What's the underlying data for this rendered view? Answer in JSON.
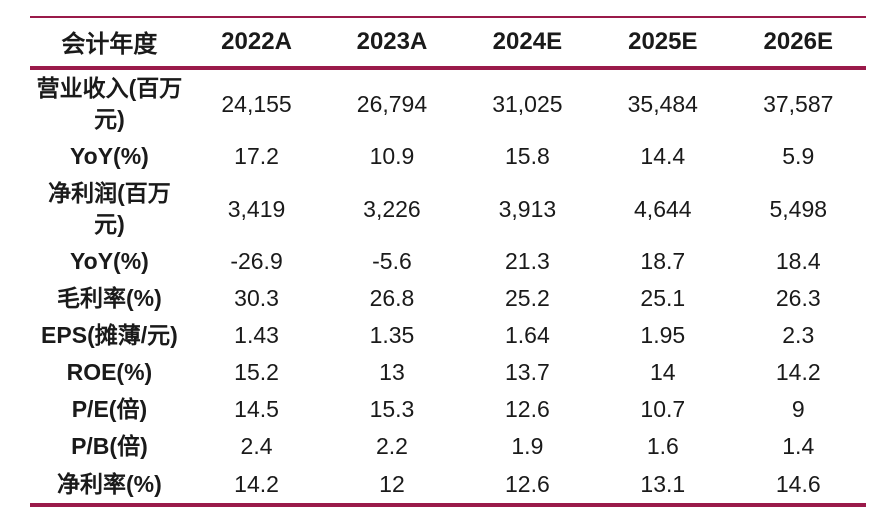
{
  "colors": {
    "accent": "#9A1A4A",
    "text": "#1A1A1A",
    "background": "#FFFFFF"
  },
  "table": {
    "columns": [
      "会计年度",
      "2022A",
      "2023A",
      "2024E",
      "2025E",
      "2026E"
    ],
    "rows": [
      {
        "label": "营业收入(百万元)",
        "values": [
          "24,155",
          "26,794",
          "31,025",
          "35,484",
          "37,587"
        ]
      },
      {
        "label": "YoY(%)",
        "values": [
          "17.2",
          "10.9",
          "15.8",
          "14.4",
          "5.9"
        ]
      },
      {
        "label": "净利润(百万元)",
        "values": [
          "3,419",
          "3,226",
          "3,913",
          "4,644",
          "5,498"
        ]
      },
      {
        "label": "YoY(%)",
        "values": [
          "-26.9",
          "-5.6",
          "21.3",
          "18.7",
          "18.4"
        ]
      },
      {
        "label": "毛利率(%)",
        "values": [
          "30.3",
          "26.8",
          "25.2",
          "25.1",
          "26.3"
        ]
      },
      {
        "label": "EPS(摊薄/元)",
        "values": [
          "1.43",
          "1.35",
          "1.64",
          "1.95",
          "2.3"
        ]
      },
      {
        "label": "ROE(%)",
        "values": [
          "15.2",
          "13",
          "13.7",
          "14",
          "14.2"
        ]
      },
      {
        "label": "P/E(倍)",
        "values": [
          "14.5",
          "15.3",
          "12.6",
          "10.7",
          "9"
        ]
      },
      {
        "label": "P/B(倍)",
        "values": [
          "2.4",
          "2.2",
          "1.9",
          "1.6",
          "1.4"
        ]
      },
      {
        "label": "净利率(%)",
        "values": [
          "14.2",
          "12",
          "12.6",
          "13.1",
          "14.6"
        ]
      }
    ]
  },
  "chart_data": {
    "type": "table",
    "categories": [
      "2022A",
      "2023A",
      "2024E",
      "2025E",
      "2026E"
    ],
    "series": [
      {
        "name": "营业收入(百万元)",
        "values": [
          24155,
          26794,
          31025,
          35484,
          37587
        ]
      },
      {
        "name": "YoY(%) 营业收入",
        "values": [
          17.2,
          10.9,
          15.8,
          14.4,
          5.9
        ]
      },
      {
        "name": "净利润(百万元)",
        "values": [
          3419,
          3226,
          3913,
          4644,
          5498
        ]
      },
      {
        "name": "YoY(%) 净利润",
        "values": [
          -26.9,
          -5.6,
          21.3,
          18.7,
          18.4
        ]
      },
      {
        "name": "毛利率(%)",
        "values": [
          30.3,
          26.8,
          25.2,
          25.1,
          26.3
        ]
      },
      {
        "name": "EPS(摊薄/元)",
        "values": [
          1.43,
          1.35,
          1.64,
          1.95,
          2.3
        ]
      },
      {
        "name": "ROE(%)",
        "values": [
          15.2,
          13,
          13.7,
          14,
          14.2
        ]
      },
      {
        "name": "P/E(倍)",
        "values": [
          14.5,
          15.3,
          12.6,
          10.7,
          9
        ]
      },
      {
        "name": "P/B(倍)",
        "values": [
          2.4,
          2.2,
          1.9,
          1.6,
          1.4
        ]
      },
      {
        "name": "净利率(%)",
        "values": [
          14.2,
          12,
          12.6,
          13.1,
          14.6
        ]
      }
    ],
    "title": "",
    "xlabel": "会计年度",
    "ylabel": "",
    "legend_position": "none",
    "grid": false
  }
}
